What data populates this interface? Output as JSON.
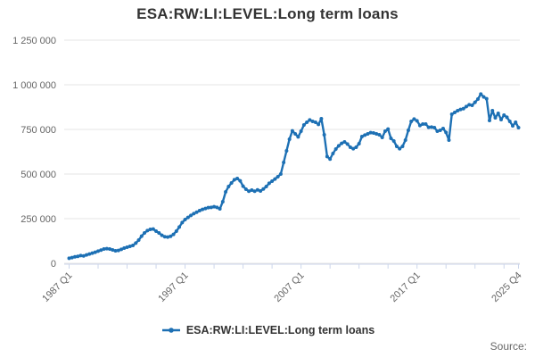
{
  "title": "ESA:RW:LI:LEVEL:Long term loans",
  "legend": {
    "label": "ESA:RW:LI:LEVEL:Long term loans"
  },
  "footer": {
    "source_label": "Source:"
  },
  "colors": {
    "accent": "#1d70b4",
    "title_text": "#333333",
    "axis_text": "#666666",
    "grid_line": "#e6e6e6",
    "axis_line": "#ccd6eb",
    "background": "#ffffff"
  },
  "chart_data": {
    "type": "line",
    "title": "ESA:RW:LI:LEVEL:Long term loans",
    "x_frequency": "quarterly",
    "x_start": "1987 Q1",
    "x_end": "2025 Q4",
    "x_tick_labels": [
      "1987 Q1",
      "1997 Q1",
      "2007 Q1",
      "2017 Q1",
      "2025 Q4"
    ],
    "x_tick_indices": [
      0,
      40,
      80,
      120,
      155
    ],
    "x_minor_tick_interval": 10,
    "ylim": [
      0,
      1250000
    ],
    "y_ticks": [
      0,
      250000,
      500000,
      750000,
      1000000,
      1250000
    ],
    "y_tick_labels": [
      "0",
      "250 000",
      "500 000",
      "750 000",
      "1 000 000",
      "1 250 000"
    ],
    "grid": "horizontal",
    "legend_position": "bottom",
    "marker": "dot",
    "series": [
      {
        "name": "ESA:RW:LI:LEVEL:Long term loans",
        "color": "#1d70b4",
        "values": [
          28000,
          32000,
          36000,
          39000,
          43000,
          41000,
          47000,
          52000,
          57000,
          62000,
          68000,
          74000,
          80000,
          82000,
          80000,
          75000,
          70000,
          72000,
          78000,
          85000,
          90000,
          95000,
          100000,
          113000,
          130000,
          152000,
          170000,
          183000,
          190000,
          192000,
          180000,
          170000,
          157000,
          149000,
          147000,
          151000,
          162000,
          180000,
          203000,
          228000,
          245000,
          257000,
          268000,
          278000,
          286000,
          295000,
          302000,
          307000,
          312000,
          313000,
          317000,
          313000,
          305000,
          345000,
          400000,
          430000,
          450000,
          468000,
          475000,
          462000,
          432000,
          415000,
          404000,
          410000,
          404000,
          411000,
          405000,
          416000,
          430000,
          448000,
          460000,
          472000,
          485000,
          500000,
          565000,
          630000,
          695000,
          742000,
          725000,
          708000,
          740000,
          775000,
          790000,
          803000,
          795000,
          790000,
          778000,
          810000,
          720000,
          598000,
          584000,
          615000,
          640000,
          658000,
          672000,
          680000,
          668000,
          650000,
          642000,
          650000,
          670000,
          710000,
          718000,
          725000,
          732000,
          730000,
          725000,
          720000,
          705000,
          740000,
          752000,
          700000,
          685000,
          655000,
          642000,
          655000,
          690000,
          745000,
          795000,
          808000,
          798000,
          772000,
          780000,
          780000,
          762000,
          763000,
          760000,
          740000,
          745000,
          755000,
          733000,
          690000,
          835000,
          845000,
          855000,
          862000,
          866000,
          878000,
          888000,
          885000,
          902000,
          920000,
          948000,
          932000,
          922000,
          800000,
          855000,
          815000,
          840000,
          805000,
          830000,
          818000,
          795000,
          770000,
          790000,
          760000
        ]
      }
    ]
  }
}
